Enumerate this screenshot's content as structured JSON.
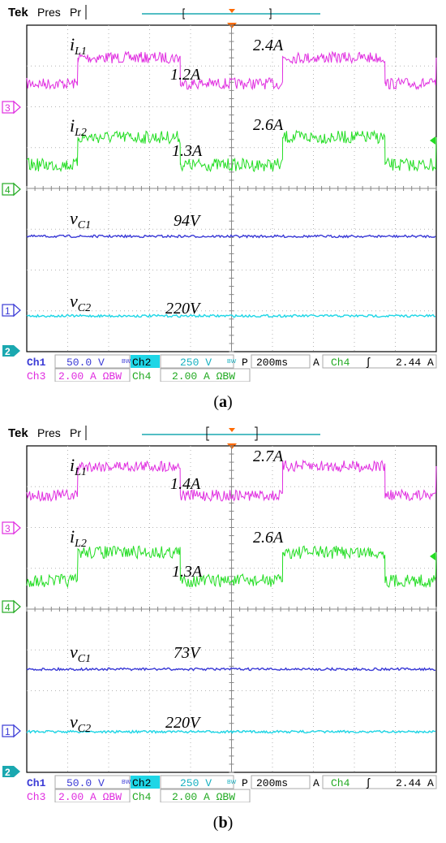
{
  "colors": {
    "ch1": "#3a3ad6",
    "ch2": "#1ed6e6",
    "ch3": "#e02de0",
    "ch4": "#22dd22",
    "grid": "#b4b4b4",
    "frame": "#000000"
  },
  "panels": [
    {
      "caption_open": "(",
      "caption_letter": "a",
      "caption_close": ")",
      "header": {
        "brand": "Tek",
        "mode": "Pres",
        "extra": "Pr"
      },
      "markers": {
        "ch3": "3",
        "ch4": "4",
        "ch1": "1",
        "ch2": "2"
      },
      "labels": {
        "iL1": {
          "sym": "i",
          "sub": "L1"
        },
        "iL2": {
          "sym": "i",
          "sub": "L2"
        },
        "vC1": {
          "sym": "v",
          "sub": "C1"
        },
        "vC2": {
          "sym": "v",
          "sub": "C2"
        },
        "iL1_low": "1.2A",
        "iL1_high": "2.4A",
        "iL2_low": "1.3A",
        "iL2_high": "2.6A",
        "vC1_val": "94V",
        "vC2_val": "220V"
      },
      "status": {
        "ch1": "Ch1",
        "ch1_scale": "50.0 V",
        "ch1_flag": "BW",
        "ch2": "Ch2",
        "ch2_scale": "250 V",
        "ch2_flag": "BW",
        "timebase_p": "P",
        "timebase": "200ms",
        "trig_a": "A",
        "trig_ch": "Ch4",
        "trig_edge": "ʃ",
        "trig_level": "2.44 A",
        "ch3": "Ch3",
        "ch3_scale": "2.00 A ΩBW",
        "ch4": "Ch4",
        "ch4_scale": "2.00 A ΩBW"
      }
    },
    {
      "caption_open": "(",
      "caption_letter": "b",
      "caption_close": ")",
      "header": {
        "brand": "Tek",
        "mode": "Pres",
        "extra": "Pr"
      },
      "markers": {
        "ch3": "3",
        "ch4": "4",
        "ch1": "1",
        "ch2": "2"
      },
      "labels": {
        "iL1": {
          "sym": "i",
          "sub": "L1"
        },
        "iL2": {
          "sym": "i",
          "sub": "L2"
        },
        "vC1": {
          "sym": "v",
          "sub": "C1"
        },
        "vC2": {
          "sym": "v",
          "sub": "C2"
        },
        "iL1_low": "1.4A",
        "iL1_high": "2.7A",
        "iL2_low": "1.3A",
        "iL2_high": "2.6A",
        "vC1_val": "73V",
        "vC2_val": "220V"
      },
      "status": {
        "ch1": "Ch1",
        "ch1_scale": "50.0 V",
        "ch1_flag": "BW",
        "ch2": "Ch2",
        "ch2_scale": "250 V",
        "ch2_flag": "BW",
        "timebase_p": "P",
        "timebase": "200ms",
        "trig_a": "A",
        "trig_ch": "Ch4",
        "trig_edge": "ʃ",
        "trig_level": "2.44 A",
        "ch3": "Ch3",
        "ch3_scale": "2.00 A ΩBW",
        "ch4": "Ch4",
        "ch4_scale": "2.00 A ΩBW"
      }
    }
  ],
  "chart_data": [
    {
      "type": "line",
      "time_per_div_ms": 200,
      "divisions": [
        10,
        8
      ],
      "x_range_ms": [
        0,
        2000
      ],
      "grid": true,
      "series": [
        {
          "name": "iL1",
          "unit": "A",
          "levels": [
            1.2,
            2.4
          ],
          "pattern": [
            [
              0,
              "low"
            ],
            [
              250,
              "high"
            ],
            [
              750,
              "low"
            ],
            [
              1250,
              "high"
            ],
            [
              1750,
              "low"
            ],
            [
              2000,
              "high"
            ]
          ]
        },
        {
          "name": "iL2",
          "unit": "A",
          "levels": [
            1.3,
            2.6
          ],
          "pattern": [
            [
              0,
              "low"
            ],
            [
              250,
              "high"
            ],
            [
              750,
              "low"
            ],
            [
              1250,
              "high"
            ],
            [
              1750,
              "low"
            ],
            [
              2000,
              "high"
            ]
          ]
        },
        {
          "name": "vC1",
          "unit": "V",
          "value": 94
        },
        {
          "name": "vC2",
          "unit": "V",
          "value": 220
        }
      ]
    },
    {
      "type": "line",
      "time_per_div_ms": 200,
      "divisions": [
        10,
        8
      ],
      "x_range_ms": [
        0,
        2000
      ],
      "grid": true,
      "series": [
        {
          "name": "iL1",
          "unit": "A",
          "levels": [
            1.4,
            2.7
          ],
          "pattern": [
            [
              0,
              "low"
            ],
            [
              250,
              "high"
            ],
            [
              750,
              "low"
            ],
            [
              1250,
              "high"
            ],
            [
              1750,
              "low"
            ],
            [
              2000,
              "high"
            ]
          ]
        },
        {
          "name": "iL2",
          "unit": "A",
          "levels": [
            1.3,
            2.6
          ],
          "pattern": [
            [
              0,
              "low"
            ],
            [
              250,
              "high"
            ],
            [
              750,
              "low"
            ],
            [
              1250,
              "high"
            ],
            [
              1750,
              "low"
            ],
            [
              2000,
              "high"
            ]
          ]
        },
        {
          "name": "vC1",
          "unit": "V",
          "value": 73
        },
        {
          "name": "vC2",
          "unit": "V",
          "value": 220
        }
      ]
    }
  ]
}
